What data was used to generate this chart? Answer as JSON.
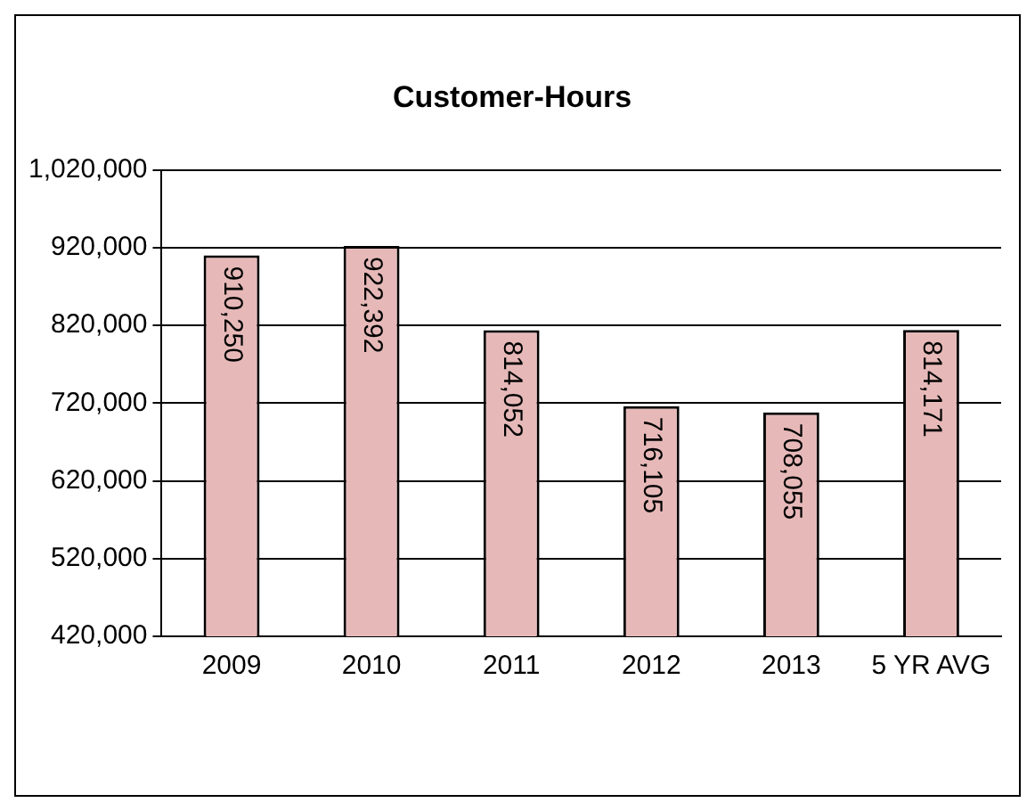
{
  "chart_data": {
    "type": "bar",
    "title": "Customer-Hours",
    "categories": [
      "2009",
      "2010",
      "2011",
      "2012",
      "2013",
      "5 YR AVG"
    ],
    "series": [
      {
        "color": "#e6b9b8",
        "values": [
          910250,
          922392,
          814052,
          716105,
          708055,
          814171
        ],
        "value_labels": [
          "910,250",
          "922,392",
          "814,052",
          "716,105",
          "708,055",
          "814,171"
        ]
      }
    ],
    "ylim": [
      420000,
      1020000
    ],
    "yticks": [
      {
        "value": 420000,
        "label": "420,000"
      },
      {
        "value": 520000,
        "label": "520,000"
      },
      {
        "value": 620000,
        "label": "620,000"
      },
      {
        "value": 720000,
        "label": "720,000"
      },
      {
        "value": 820000,
        "label": "820,000"
      },
      {
        "value": 920000,
        "label": "920,000"
      },
      {
        "value": 1020000,
        "label": "1,020,000"
      }
    ],
    "grid": "y",
    "legend": false
  }
}
